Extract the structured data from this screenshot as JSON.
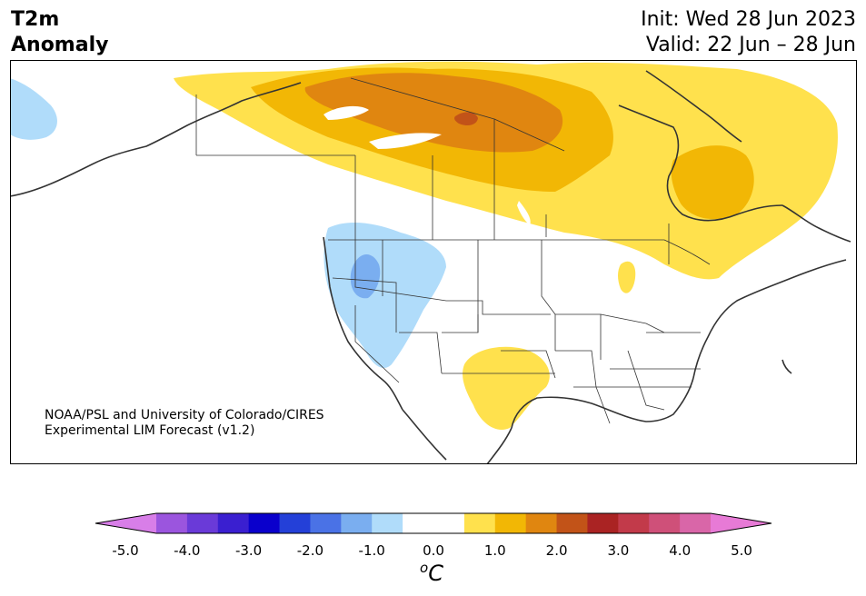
{
  "title": {
    "line1": "T2m",
    "line2": "Anomaly"
  },
  "dates": {
    "init": "Init: Wed 28 Jun 2023",
    "valid": "Valid: 22 Jun – 28 Jun"
  },
  "credit": {
    "line1": "NOAA/PSL and University of Colorado/CIRES",
    "line2": "Experimental LIM Forecast (v1.2)"
  },
  "colorbar": {
    "ticks": [
      "-5.0",
      "-4.0",
      "-3.0",
      "-2.0",
      "-1.0",
      "0.0",
      "1.0",
      "2.0",
      "3.0",
      "4.0",
      "5.0"
    ],
    "colors": [
      "#d87ee8",
      "#9b55de",
      "#6a3ad8",
      "#3a1fd0",
      "#0a00cc",
      "#2440d8",
      "#4a72e6",
      "#7aaef0",
      "#b0dcfa",
      "#ffffff",
      "#ffffff",
      "#ffe14d",
      "#f2b705",
      "#e08610",
      "#c25318",
      "#aa2323",
      "#c23a4a",
      "#cf5079",
      "#d966a8",
      "#e77ad6"
    ],
    "unit": "C",
    "unit_sup": "o"
  },
  "legend_colors": {
    "cold_weak": "#b0dcfa",
    "cold_moderate": "#7aaef0",
    "warm_weak": "#ffe14d",
    "warm_moderate": "#f2b705",
    "warm_strong": "#e08610",
    "warm_very_strong": "#c25318"
  }
}
